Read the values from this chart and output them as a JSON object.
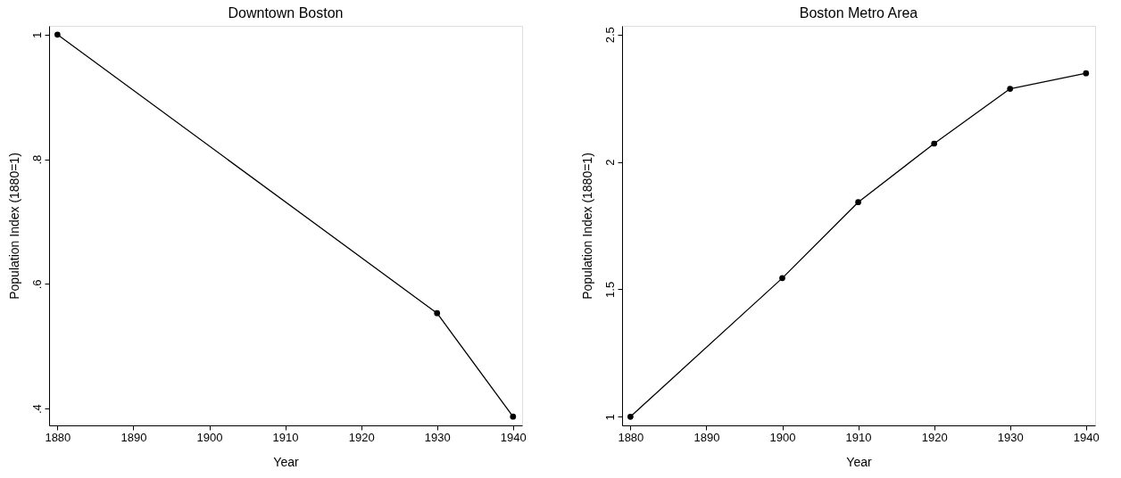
{
  "chart_data": [
    {
      "type": "line",
      "title": "Downtown Boston",
      "xlabel": "Year",
      "ylabel": "Population Index (1880=1)",
      "marker": "circle",
      "line_style": "solid",
      "grid": false,
      "x": [
        1880,
        1930,
        1940
      ],
      "series": [
        {
          "color": "#000000",
          "values": [
            1,
            0.553,
            0.387
          ]
        }
      ],
      "xlim": [
        1878.9,
        1941.2
      ],
      "xticks": [
        1880,
        1890,
        1900,
        1910,
        1920,
        1930,
        1940
      ],
      "ylim": [
        0.373,
        1.014
      ],
      "yticks": [
        {
          "value": 0.4,
          "label": ".4"
        },
        {
          "value": 0.6,
          "label": ".6"
        },
        {
          "value": 0.8,
          "label": ".8"
        },
        1
      ]
    },
    {
      "type": "line",
      "title": "Boston Metro Area",
      "xlabel": "Year",
      "ylabel": "Population Index (1880=1)",
      "marker": "circle",
      "line_style": "solid",
      "grid": false,
      "x": [
        1880,
        1900,
        1910,
        1920,
        1930,
        1940
      ],
      "series": [
        {
          "color": "#000000",
          "values": [
            1,
            1.544,
            1.842,
            2.072,
            2.287,
            2.348
          ]
        }
      ],
      "xlim": [
        1878.9,
        1941.2
      ],
      "xticks": [
        1880,
        1890,
        1900,
        1910,
        1920,
        1930,
        1940
      ],
      "ylim": [
        0.966,
        2.534
      ],
      "yticks": [
        1,
        1.5,
        2,
        2.5
      ]
    }
  ]
}
